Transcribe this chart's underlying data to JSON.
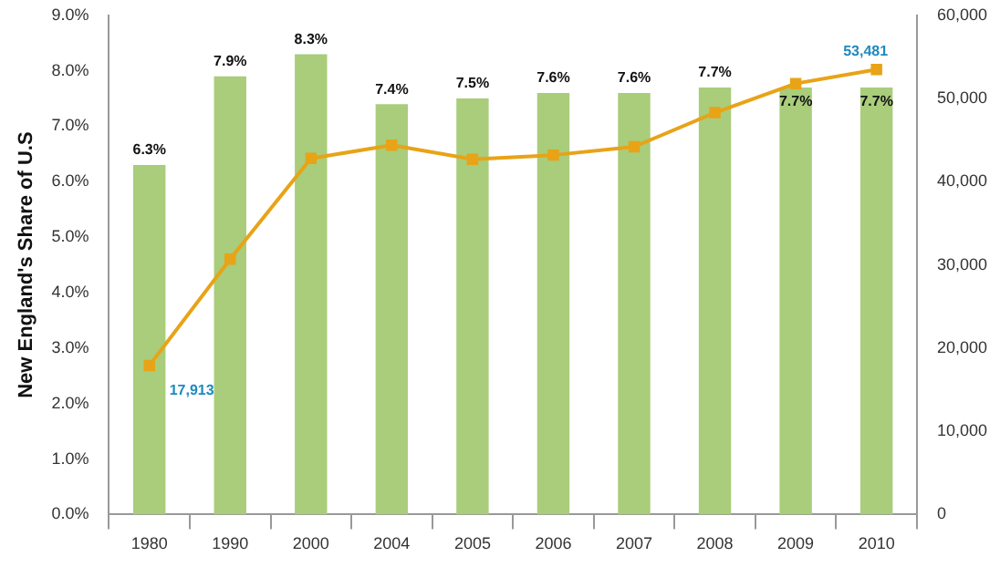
{
  "chart_data": {
    "type": "bar",
    "ylabel": "New England's Share of U.S",
    "categories": [
      "1980",
      "1990",
      "2000",
      "2004",
      "2005",
      "2006",
      "2007",
      "2008",
      "2009",
      "2010"
    ],
    "series": [
      {
        "color": "#a9cd7b",
        "values": [
          6.3,
          7.9,
          8.3,
          7.4,
          7.5,
          7.6,
          7.6,
          7.7,
          7.7,
          7.7
        ],
        "value_labels": [
          "6.3%",
          "7.9%",
          "8.3%",
          "7.4%",
          "7.5%",
          "7.6%",
          "7.6%",
          "7.7%",
          "7.7%",
          "7.7%"
        ]
      },
      {
        "type": "line",
        "axis": "y2",
        "color": "#e8a317",
        "marker": "square",
        "line_style": "solid",
        "values": [
          17913,
          30700,
          42800,
          44400,
          42700,
          43200,
          44200,
          48300,
          51800,
          53481
        ],
        "value_labels": [
          "17,913",
          null,
          null,
          null,
          null,
          null,
          null,
          null,
          null,
          "53,481"
        ]
      }
    ],
    "ylim": [
      0,
      9
    ],
    "yticks": [
      {
        "value": 0,
        "label": "0.0%"
      },
      {
        "value": 1,
        "label": "1.0%"
      },
      {
        "value": 2,
        "label": "2.0%"
      },
      {
        "value": 3,
        "label": "3.0%"
      },
      {
        "value": 4,
        "label": "4.0%"
      },
      {
        "value": 5,
        "label": "5.0%"
      },
      {
        "value": 6,
        "label": "6.0%"
      },
      {
        "value": 7,
        "label": "7.0%"
      },
      {
        "value": 8,
        "label": "8.0%"
      },
      {
        "value": 9,
        "label": "9.0%"
      }
    ],
    "y2lim": [
      0,
      60000
    ],
    "y2ticks": [
      {
        "value": 0,
        "label": "0"
      },
      {
        "value": 10000,
        "label": "10,000"
      },
      {
        "value": 20000,
        "label": "20,000"
      },
      {
        "value": 30000,
        "label": "30,000"
      },
      {
        "value": 40000,
        "label": "40,000"
      },
      {
        "value": 50000,
        "label": "50,000"
      },
      {
        "value": 60000,
        "label": "60,000"
      }
    ],
    "grid": false,
    "legend": false
  }
}
